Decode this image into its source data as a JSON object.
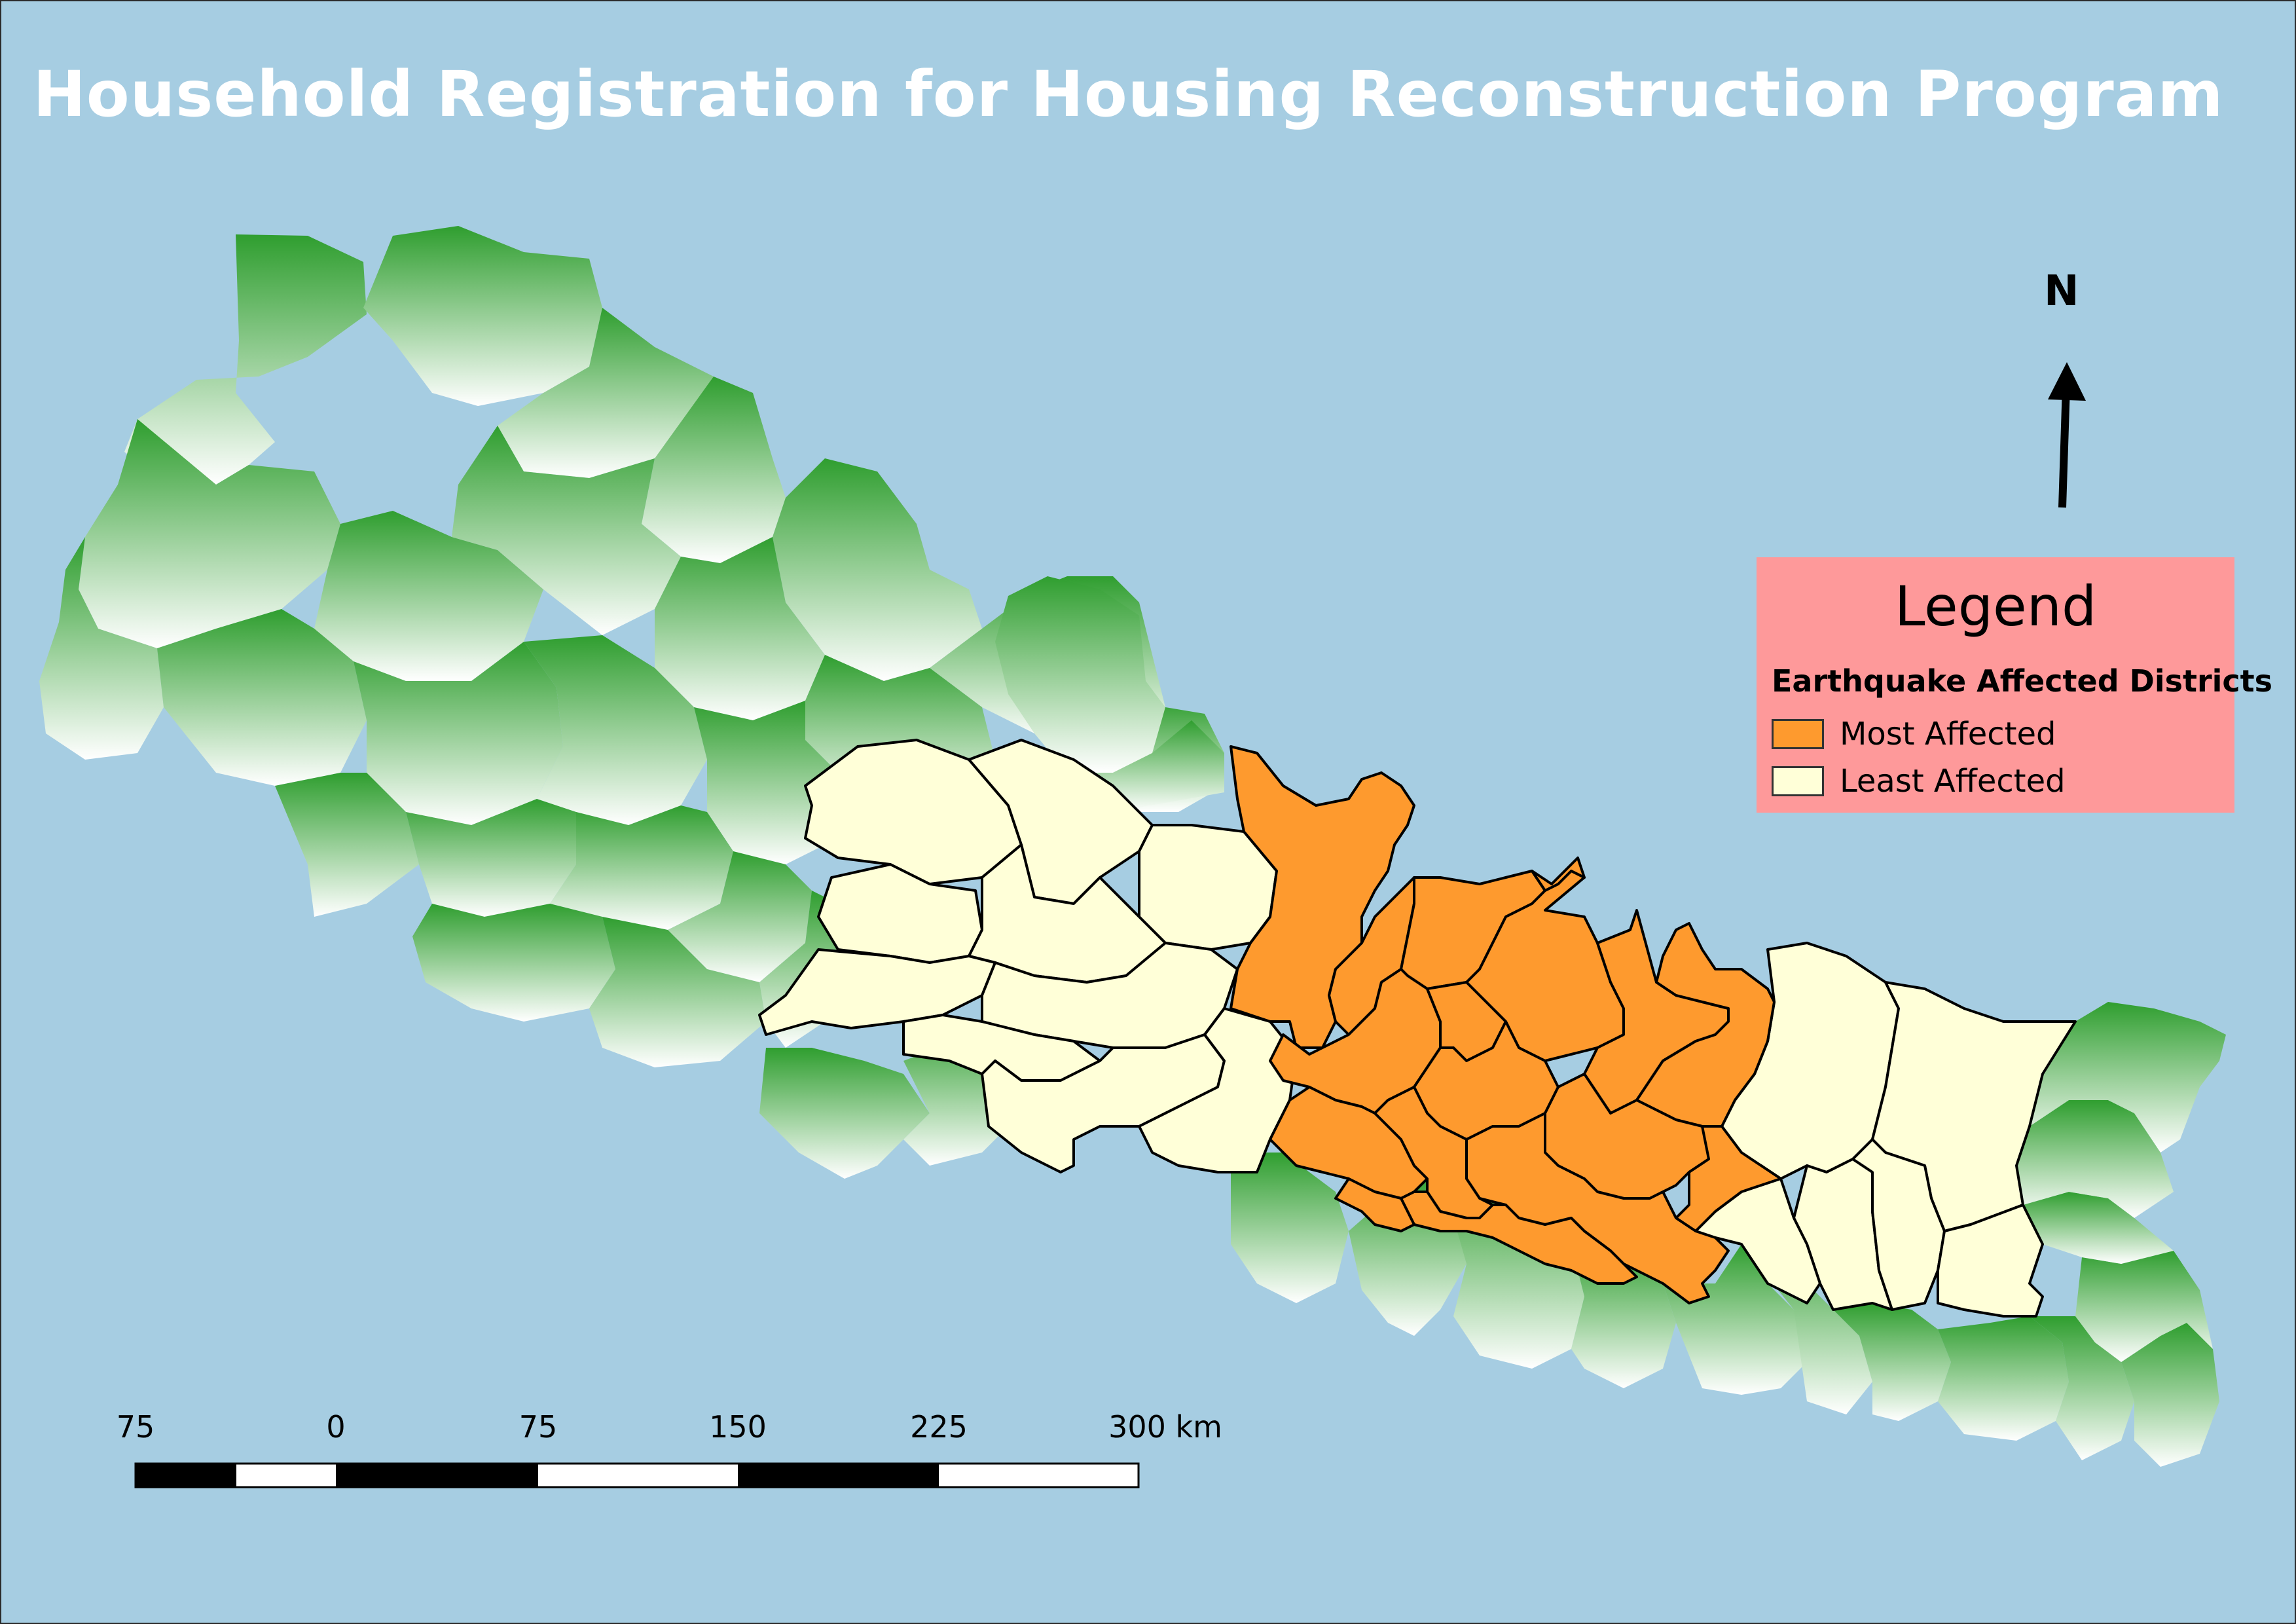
{
  "title": "Household Registration for Housing Reconstruction Program",
  "north_arrow": {
    "label": "N",
    "icon": "north-arrow-icon"
  },
  "legend": {
    "title": "Legend",
    "subtitle": "Earthquake Affected Districts",
    "items": [
      {
        "label": "Most Affected",
        "color": "#fe9a2e"
      },
      {
        "label": "Least Affected",
        "color": "#ffffd8"
      }
    ]
  },
  "scale_bar": {
    "labels": [
      "75",
      "0",
      "75",
      "150",
      "225",
      "300 km"
    ]
  },
  "colors": {
    "water": "#a6cde2",
    "other_districts_dark": "#32a032",
    "other_districts_light": "#ffffff",
    "most_affected": "#fe9a2e",
    "least_affected": "#ffffd8",
    "legend_background": "#fe999a",
    "title_text": "#ffffff"
  }
}
